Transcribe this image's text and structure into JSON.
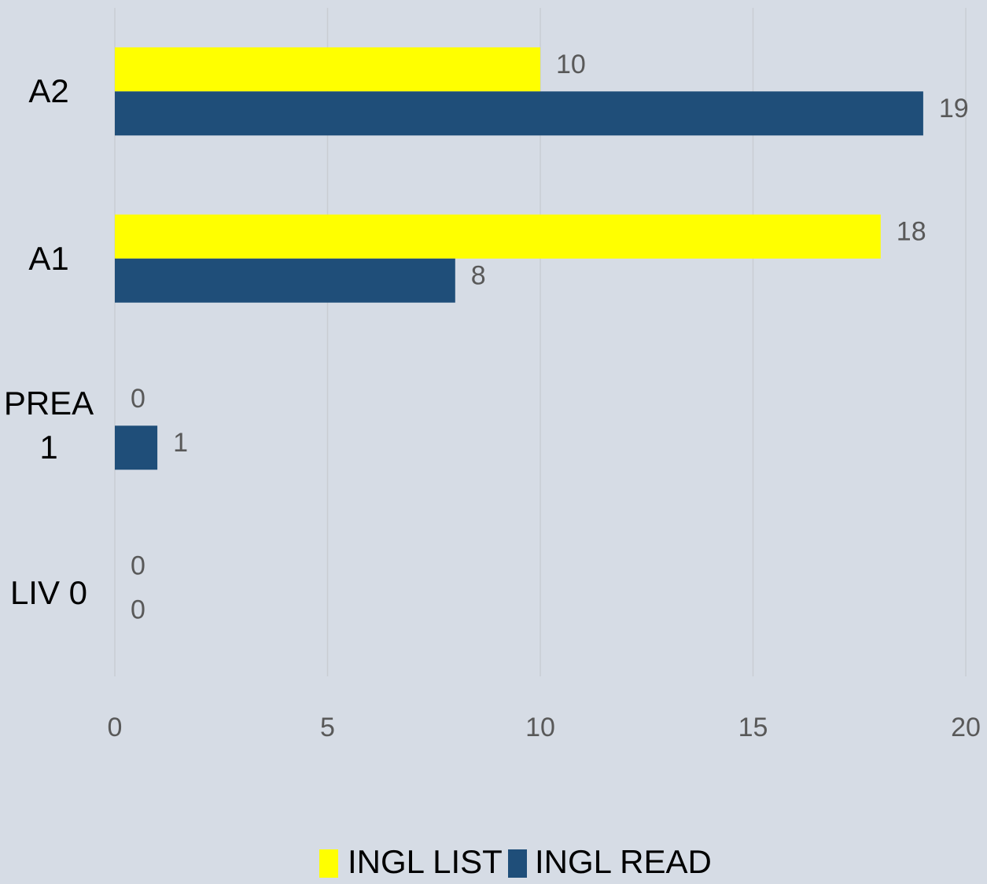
{
  "chart_data": {
    "type": "hbar",
    "categories": [
      "A2",
      "A1",
      "PREA 1",
      "LIV 0"
    ],
    "series": [
      {
        "name": "INGL LIST",
        "color": "#ffff00",
        "values": [
          10,
          18,
          0,
          0
        ]
      },
      {
        "name": "INGL READ",
        "color": "#1f4e79",
        "values": [
          19,
          8,
          1,
          0
        ]
      }
    ],
    "xlim": [
      0,
      20
    ],
    "xticks": [
      0,
      5,
      10,
      15,
      20
    ],
    "grid": true,
    "legend": "bottom"
  }
}
